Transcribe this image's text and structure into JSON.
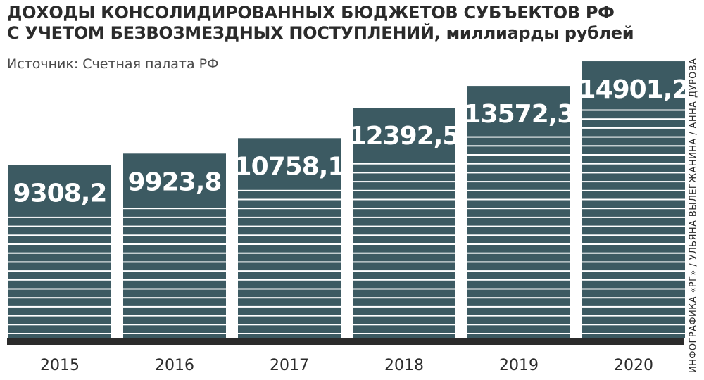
{
  "header": {
    "title_line1": "ДОХОДЫ КОНСОЛИДИРОВАННЫХ БЮДЖЕТОВ СУБЪЕКТОВ РФ",
    "title_line2": "С УЧЕТОМ БЕЗВОЗМЕЗДНЫХ ПОСТУПЛЕНИЙ, миллиарды рублей",
    "source": "Источник:  Счетная палата РФ",
    "credit": "ИНФОГРАФИКА «РГ» / УЛЬЯНА ВЫЛЕГЖАНИНА / АННА ДУРОВА"
  },
  "chart_data": {
    "type": "bar",
    "title": "ДОХОДЫ КОНСОЛИДИРОВАННЫХ БЮДЖЕТОВ СУБЪЕКТОВ РФ С УЧЕТОМ БЕЗВОЗМЕЗДНЫХ ПОСТУПЛЕНИЙ, миллиарды рублей",
    "categories": [
      "2015",
      "2016",
      "2017",
      "2018",
      "2019",
      "2020"
    ],
    "values": [
      9308.2,
      9923.8,
      10758.1,
      12392.5,
      13572.3,
      14901.2
    ],
    "value_labels": [
      "9308,2",
      "9923,8",
      "10758,1",
      "12392,5",
      "13572,3",
      "14901,2"
    ],
    "xlabel": "",
    "ylabel": "",
    "grid": false,
    "legend": "none",
    "colors": {
      "bar": "#3c5a62",
      "stripe": "#ffffff",
      "baseline": "#2b2b2b",
      "text": "#2b2b2b"
    }
  }
}
